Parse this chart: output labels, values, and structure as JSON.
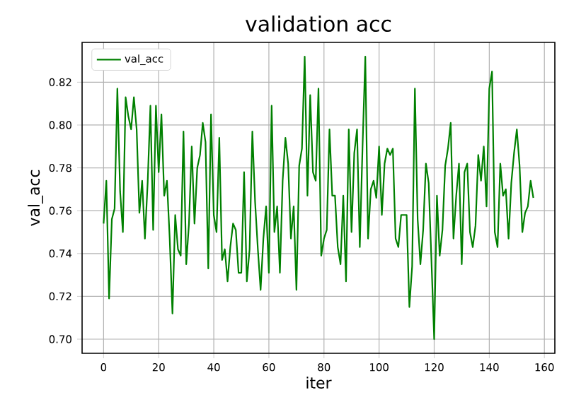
{
  "chart_data": {
    "type": "line",
    "title": "validation acc",
    "xlabel": "iter",
    "ylabel": "val_acc",
    "x": [
      0,
      1,
      2,
      3,
      4,
      5,
      6,
      7,
      8,
      9,
      10,
      11,
      12,
      13,
      14,
      15,
      16,
      17,
      18,
      19,
      20,
      21,
      22,
      23,
      24,
      25,
      26,
      27,
      28,
      29,
      30,
      31,
      32,
      33,
      34,
      35,
      36,
      37,
      38,
      39,
      40,
      41,
      42,
      43,
      44,
      45,
      46,
      47,
      48,
      49,
      50,
      51,
      52,
      53,
      54,
      55,
      56,
      57,
      58,
      59,
      60,
      61,
      62,
      63,
      64,
      65,
      66,
      67,
      68,
      69,
      70,
      71,
      72,
      73,
      74,
      75,
      76,
      77,
      78,
      79,
      80,
      81,
      82,
      83,
      84,
      85,
      86,
      87,
      88,
      89,
      90,
      91,
      92,
      93,
      94,
      95,
      96,
      97,
      98,
      99,
      100,
      101,
      102,
      103,
      104,
      105,
      106,
      107,
      108,
      109,
      110,
      111,
      112,
      113,
      114,
      115,
      116,
      117,
      118,
      119,
      120,
      121,
      122,
      123,
      124,
      125,
      126,
      127,
      128,
      129,
      130,
      131,
      132,
      133,
      134,
      135,
      136,
      137,
      138,
      139,
      140,
      141,
      142,
      143,
      144,
      145,
      146,
      147,
      148,
      149,
      150,
      151,
      152,
      153,
      154,
      155,
      156
    ],
    "series": [
      {
        "name": "val_acc",
        "color": "#008000",
        "values": [
          0.754,
          0.774,
          0.719,
          0.756,
          0.761,
          0.817,
          0.769,
          0.75,
          0.813,
          0.804,
          0.798,
          0.813,
          0.798,
          0.759,
          0.774,
          0.747,
          0.773,
          0.809,
          0.751,
          0.809,
          0.778,
          0.805,
          0.767,
          0.774,
          0.747,
          0.712,
          0.758,
          0.742,
          0.739,
          0.797,
          0.735,
          0.754,
          0.79,
          0.754,
          0.78,
          0.786,
          0.801,
          0.792,
          0.733,
          0.805,
          0.758,
          0.75,
          0.794,
          0.737,
          0.742,
          0.727,
          0.743,
          0.754,
          0.751,
          0.731,
          0.731,
          0.778,
          0.727,
          0.742,
          0.797,
          0.764,
          0.742,
          0.723,
          0.747,
          0.762,
          0.731,
          0.809,
          0.75,
          0.762,
          0.731,
          0.774,
          0.794,
          0.782,
          0.747,
          0.762,
          0.723,
          0.781,
          0.789,
          0.832,
          0.767,
          0.814,
          0.778,
          0.774,
          0.817,
          0.739,
          0.747,
          0.751,
          0.798,
          0.767,
          0.767,
          0.743,
          0.735,
          0.767,
          0.727,
          0.798,
          0.75,
          0.787,
          0.798,
          0.743,
          0.79,
          0.832,
          0.747,
          0.77,
          0.774,
          0.766,
          0.79,
          0.758,
          0.782,
          0.789,
          0.786,
          0.789,
          0.747,
          0.743,
          0.758,
          0.758,
          0.758,
          0.715,
          0.734,
          0.817,
          0.756,
          0.735,
          0.751,
          0.782,
          0.773,
          0.737,
          0.7,
          0.767,
          0.739,
          0.751,
          0.781,
          0.789,
          0.801,
          0.747,
          0.767,
          0.782,
          0.735,
          0.778,
          0.782,
          0.75,
          0.743,
          0.753,
          0.786,
          0.774,
          0.79,
          0.762,
          0.817,
          0.825,
          0.75,
          0.743,
          0.782,
          0.767,
          0.77,
          0.747,
          0.773,
          0.787,
          0.798,
          0.781,
          0.75,
          0.759,
          0.762,
          0.774,
          0.766
        ]
      }
    ],
    "xlim": [
      -7.8,
      163.8
    ],
    "ylim": [
      0.6934,
      0.8386
    ],
    "xticks": [
      0,
      20,
      40,
      60,
      80,
      100,
      120,
      140,
      160
    ],
    "yticks": [
      {
        "value": 0.7,
        "label": "0.70"
      },
      {
        "value": 0.72,
        "label": "0.72"
      },
      {
        "value": 0.74,
        "label": "0.74"
      },
      {
        "value": 0.76,
        "label": "0.76"
      },
      {
        "value": 0.78,
        "label": "0.78"
      },
      {
        "value": 0.8,
        "label": "0.80"
      },
      {
        "value": 0.82,
        "label": "0.82"
      }
    ],
    "grid": true,
    "legend": "top left",
    "marker": "none",
    "line_style": "solid"
  }
}
